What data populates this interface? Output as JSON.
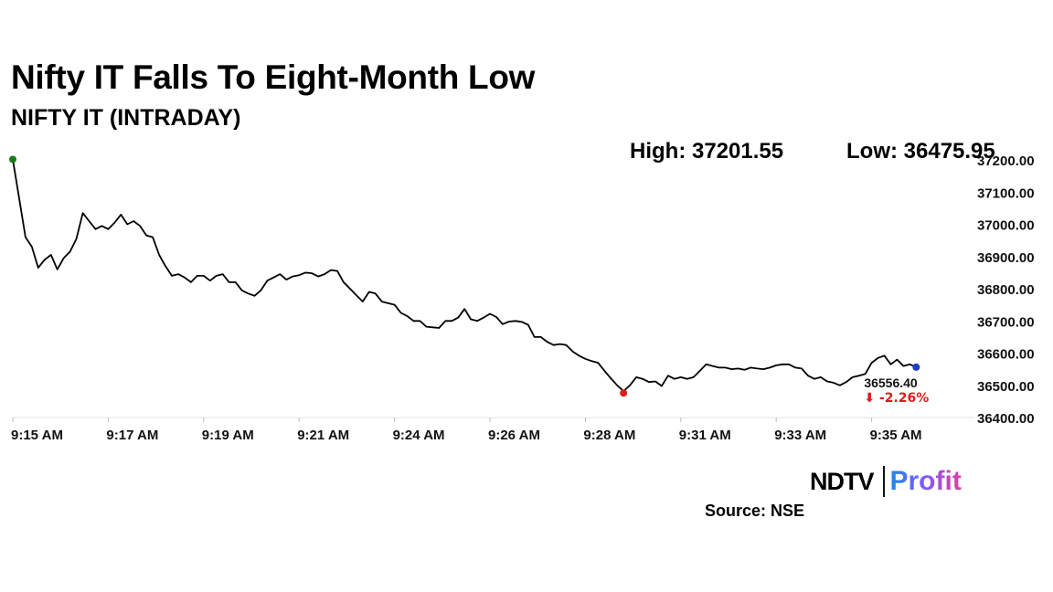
{
  "header": {
    "title": "Nifty IT Falls To Eight-Month Low",
    "subtitle": "NIFTY IT (INTRADAY)"
  },
  "stats": {
    "high_label": "High: 37201.55",
    "low_label": "Low: 36475.95"
  },
  "footer": {
    "logo_ndtv": "NDTV",
    "logo_profit": "Profit",
    "source": "Source: NSE"
  },
  "colors": {
    "line": "#000000",
    "start_marker": "#1b7a1b",
    "low_marker": "#e01b1b",
    "end_marker": "#1f3fbf",
    "change_text": "#e01b1b",
    "grid": "#e3e3e3"
  },
  "chart_data": {
    "type": "line",
    "title": "NIFTY IT (INTRADAY)",
    "xlabel": "",
    "ylabel": "",
    "ylim": [
      36400,
      37200
    ],
    "yticks": [
      36400,
      36500,
      36600,
      36700,
      36800,
      36900,
      37000,
      37100,
      37200
    ],
    "ytick_labels": [
      "36400.00",
      "36500.00",
      "36600.00",
      "36700.00",
      "36800.00",
      "36900.00",
      "37000.00",
      "37100.00",
      "37200.00"
    ],
    "xlim": [
      0,
      150
    ],
    "xtick_positions": [
      0,
      15,
      30,
      45,
      60,
      75,
      90,
      105,
      120,
      135
    ],
    "xtick_labels": [
      "9:15 AM",
      "9:17 AM",
      "9:19 AM",
      "9:21 AM",
      "9:24 AM",
      "9:26 AM",
      "9:28 AM",
      "9:31 AM",
      "9:33 AM",
      "9:35 AM"
    ],
    "grid": false,
    "series": [
      {
        "name": "NIFTY IT",
        "values": [
          37201.55,
          37080,
          36960,
          36930,
          36865,
          36890,
          36905,
          36860,
          36895,
          36915,
          36955,
          37035,
          37010,
          36985,
          36995,
          36985,
          37005,
          37030,
          37000,
          37010,
          36995,
          36965,
          36960,
          36905,
          36870,
          36840,
          36845,
          36835,
          36820,
          36840,
          36840,
          36825,
          36840,
          36845,
          36820,
          36820,
          36795,
          36785,
          36778,
          36795,
          36825,
          36835,
          36845,
          36828,
          36838,
          36842,
          36850,
          36848,
          36838,
          36845,
          36858,
          36855,
          36820,
          36800,
          36780,
          36760,
          36790,
          36785,
          36760,
          36755,
          36750,
          36725,
          36715,
          36700,
          36700,
          36682,
          36680,
          36678,
          36700,
          36700,
          36710,
          36737,
          36705,
          36700,
          36710,
          36722,
          36712,
          36690,
          36698,
          36700,
          36697,
          36688,
          36650,
          36650,
          36635,
          36625,
          36628,
          36625,
          36605,
          36592,
          36582,
          36575,
          36570,
          36545,
          36522,
          36500,
          36482,
          36500,
          36525,
          36520,
          36510,
          36512,
          36498,
          36530,
          36520,
          36525,
          36520,
          36525,
          36545,
          36565,
          36560,
          36555,
          36555,
          36550,
          36552,
          36548,
          36555,
          36552,
          36550,
          36555,
          36562,
          36565,
          36565,
          36555,
          36552,
          36530,
          36520,
          36525,
          36512,
          36508,
          36500,
          36510,
          36525,
          36530,
          36535,
          36570,
          36585,
          36592,
          36565,
          36580,
          36560,
          36565,
          36556.4
        ]
      }
    ],
    "markers": {
      "start": 37201.55,
      "low": 36475.95,
      "last": 36556.4
    },
    "annotations": {
      "last_value": "36556.40",
      "change": "⬇ -2.26%"
    }
  }
}
